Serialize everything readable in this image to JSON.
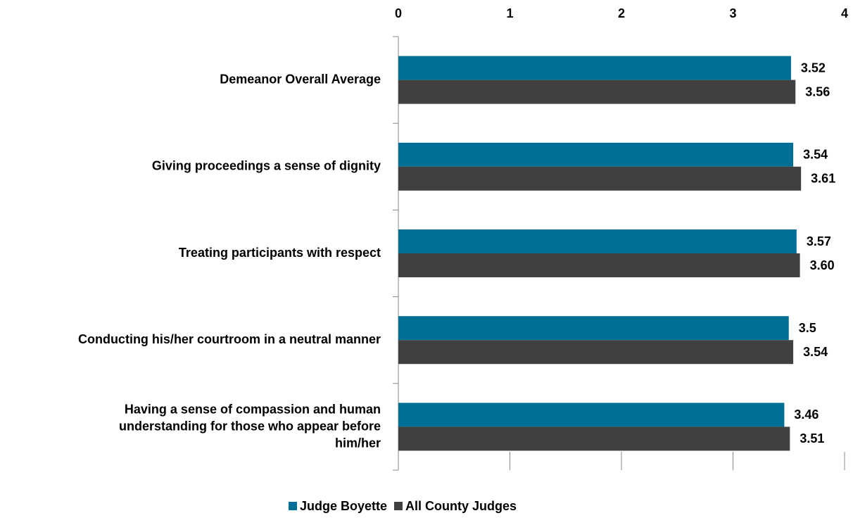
{
  "chart_data": {
    "type": "bar",
    "orientation": "horizontal",
    "categories": [
      "Demeanor Overall Average",
      "Giving proceedings a sense of dignity",
      "Treating participants with respect",
      "Conducting his/her courtroom in a neutral manner",
      "Having a sense of compassion and human understanding for those who appear before him/her"
    ],
    "series": [
      {
        "name": "Judge Boyette",
        "color": "#006f95",
        "values": [
          3.52,
          3.54,
          3.57,
          3.5,
          3.46
        ],
        "value_labels": [
          "3.52",
          "3.54",
          "3.57",
          "3.5",
          "3.46"
        ]
      },
      {
        "name": "All County Judges",
        "color": "#404040",
        "values": [
          3.56,
          3.61,
          3.6,
          3.54,
          3.51
        ],
        "value_labels": [
          "3.56",
          "3.61",
          "3.60",
          "3.54",
          "3.51"
        ]
      }
    ],
    "xlim": [
      0,
      4
    ],
    "xticks": [
      0,
      1,
      2,
      3,
      4
    ],
    "legend": "bottom"
  }
}
